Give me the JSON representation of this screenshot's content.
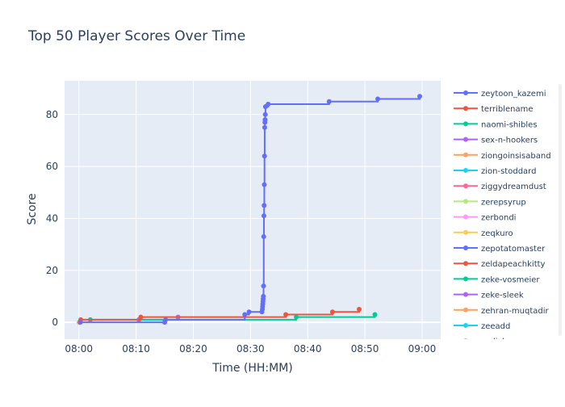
{
  "chart_data": {
    "type": "line",
    "title": "Top 50 Player Scores Over Time",
    "xlabel": "Time (HH:MM)",
    "ylabel": "Score",
    "line_shape": "step",
    "x_ticks": [
      "08:00",
      "08:10",
      "08:20",
      "08:30",
      "08:40",
      "08:50",
      "09:00"
    ],
    "y_ticks": [
      0,
      20,
      40,
      60,
      80
    ],
    "xlim": [
      "07:57:30",
      "09:03:15"
    ],
    "ylim": [
      -6.5,
      93
    ],
    "grid": true,
    "legend_position": "right",
    "colors": {
      "plot_background": "#e5ecf6",
      "grid": "#ffffff",
      "title": "#2a3f5f",
      "text": "#2a3f5f"
    },
    "series": [
      {
        "name": "zeytoon_kazemi",
        "color": "#636efa",
        "points": [
          [
            "08:00:15",
            0
          ],
          [
            "08:15:00",
            0
          ],
          [
            "08:15:10",
            1
          ],
          [
            "08:29:00",
            3
          ],
          [
            "08:29:45",
            4
          ],
          [
            "08:32:00",
            4
          ],
          [
            "08:32:05",
            5
          ],
          [
            "08:32:07",
            6
          ],
          [
            "08:32:09",
            7
          ],
          [
            "08:32:11",
            8
          ],
          [
            "08:32:13",
            9
          ],
          [
            "08:32:15",
            10
          ],
          [
            "08:32:17",
            14
          ],
          [
            "08:32:19",
            33
          ],
          [
            "08:32:21",
            41
          ],
          [
            "08:32:23",
            45
          ],
          [
            "08:32:25",
            53
          ],
          [
            "08:32:27",
            64
          ],
          [
            "08:32:29",
            75
          ],
          [
            "08:32:31",
            77
          ],
          [
            "08:32:33",
            78
          ],
          [
            "08:32:35",
            80
          ],
          [
            "08:32:37",
            83
          ],
          [
            "08:33:05",
            84
          ],
          [
            "08:43:45",
            85
          ],
          [
            "08:52:15",
            86
          ],
          [
            "08:59:35",
            87
          ]
        ]
      },
      {
        "name": "terriblename",
        "color": "#ef553b",
        "points": [
          [
            "08:00:20",
            1
          ],
          [
            "08:10:50",
            2
          ],
          [
            "08:36:10",
            3
          ],
          [
            "08:44:20",
            4
          ],
          [
            "08:49:00",
            5
          ]
        ]
      },
      {
        "name": "naomi-shibles",
        "color": "#00cc96",
        "points": [
          [
            "08:02:00",
            1
          ],
          [
            "08:38:00",
            2
          ],
          [
            "08:51:45",
            3
          ]
        ]
      },
      {
        "name": "sex-n-hookers",
        "color": "#ab63fa",
        "points": [
          [
            "08:10:30",
            1
          ],
          [
            "08:17:20",
            2
          ]
        ]
      },
      {
        "name": "ziongoinsisaband",
        "color": "#ffa15a",
        "points": [
          [
            "08:00:05",
            0
          ]
        ]
      },
      {
        "name": "zion-stoddard",
        "color": "#19d3f3",
        "points": [
          [
            "08:00:05",
            0
          ]
        ]
      },
      {
        "name": "ziggydreamdust",
        "color": "#ff6692",
        "points": [
          [
            "08:00:05",
            0
          ]
        ]
      },
      {
        "name": "zerepsyrup",
        "color": "#b6e880",
        "points": [
          [
            "08:00:05",
            0
          ]
        ]
      },
      {
        "name": "zerbondi",
        "color": "#ff97ff",
        "points": [
          [
            "08:00:05",
            0
          ]
        ]
      },
      {
        "name": "zeqkuro",
        "color": "#fecb52",
        "points": [
          [
            "08:00:05",
            0
          ]
        ]
      },
      {
        "name": "zepotatomaster",
        "color": "#636efa",
        "points": [
          [
            "08:00:05",
            0
          ]
        ]
      },
      {
        "name": "zeldapeachkitty",
        "color": "#ef553b",
        "points": [
          [
            "08:00:05",
            0
          ]
        ]
      },
      {
        "name": "zeke-vosmeier",
        "color": "#00cc96",
        "points": [
          [
            "08:00:05",
            0
          ]
        ]
      },
      {
        "name": "zeke-sleek",
        "color": "#ab63fa",
        "points": [
          [
            "08:00:05",
            0
          ]
        ]
      },
      {
        "name": "zehran-muqtadir",
        "color": "#ffa15a",
        "points": [
          [
            "08:00:05",
            0
          ]
        ]
      },
      {
        "name": "zeeadd",
        "color": "#19d3f3",
        "points": [
          [
            "08:00:05",
            0
          ]
        ]
      },
      {
        "name": "zedick",
        "color": "#ff6692",
        "points": [
          [
            "08:00:05",
            0
          ]
        ]
      }
    ]
  }
}
